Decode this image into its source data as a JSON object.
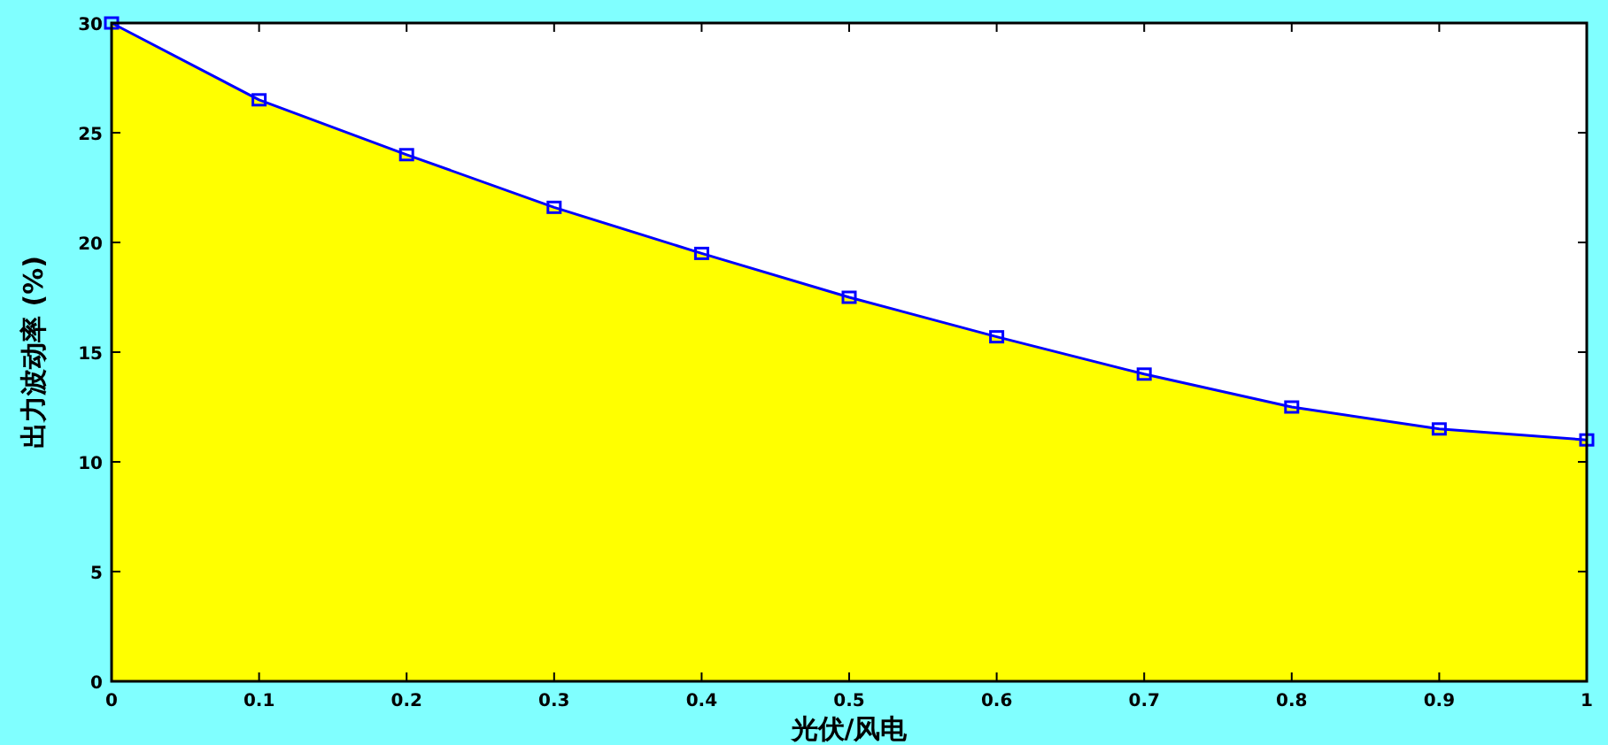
{
  "chart_data": {
    "type": "area",
    "xlabel": "光伏/风电",
    "ylabel": "出力波动率 (%)",
    "x": [
      0,
      0.1,
      0.2,
      0.3,
      0.4,
      0.5,
      0.6,
      0.7,
      0.8,
      0.9,
      1
    ],
    "series": [
      {
        "color": "#ffff00",
        "values": [
          30,
          26.5,
          24,
          21.6,
          19.5,
          17.5,
          15.7,
          14,
          12.5,
          11.5,
          11
        ]
      },
      {
        "type": "line",
        "color": "#0000ff",
        "marker": "square",
        "values": [
          30,
          26.5,
          24,
          21.6,
          19.5,
          17.5,
          15.7,
          14,
          12.5,
          11.5,
          11
        ]
      }
    ],
    "xlim": [
      0,
      1
    ],
    "xticks": [
      0,
      0.1,
      0.2,
      0.3,
      0.4,
      0.5,
      0.6,
      0.7,
      0.8,
      0.9,
      1
    ],
    "ylim": [
      0,
      30
    ],
    "yticks": [
      0,
      5,
      10,
      15,
      20,
      25,
      30
    ],
    "grid": false
  }
}
